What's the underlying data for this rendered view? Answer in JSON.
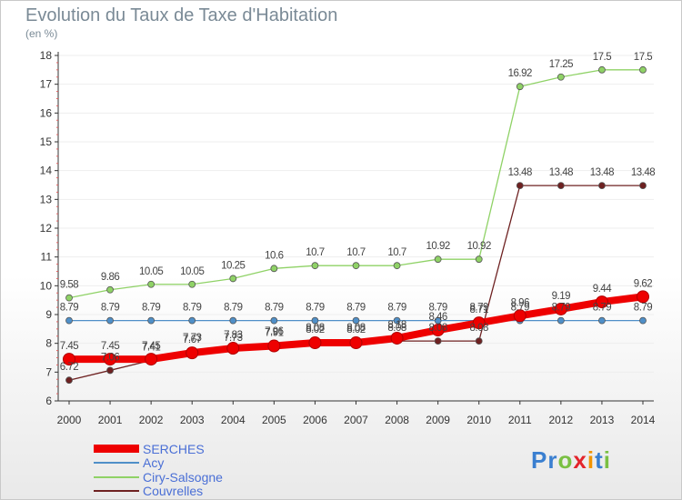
{
  "title": "Evolution du Taux de Taxe d'Habitation",
  "unit_label": "(en %)",
  "brand": {
    "letters": [
      {
        "ch": "P",
        "color": "#3a7fd0"
      },
      {
        "ch": "r",
        "color": "#3a7fd0"
      },
      {
        "ch": "o",
        "color": "#7ac043"
      },
      {
        "ch": "x",
        "color": "#e3242b"
      },
      {
        "ch": "i",
        "color": "#f29400"
      },
      {
        "ch": "t",
        "color": "#3a7fd0"
      },
      {
        "ch": "i",
        "color": "#7ac043"
      }
    ]
  },
  "chart_data": {
    "type": "line",
    "title": "Evolution du Taux de Taxe d'Habitation",
    "ylabel": "(en %)",
    "xlabel": "",
    "x": [
      "2000",
      "2001",
      "2002",
      "2003",
      "2004",
      "2005",
      "2006",
      "2007",
      "2008",
      "2009",
      "2010",
      "2011",
      "2012",
      "2013",
      "2014"
    ],
    "ylim": [
      6,
      18
    ],
    "yticks": [
      "6",
      "7",
      "8",
      "9",
      "10",
      "11",
      "12",
      "13",
      "14",
      "15",
      "16",
      "17",
      "18"
    ],
    "legend_position": "bottom-left",
    "series": [
      {
        "name": "SERCHES",
        "color": "#ee0000",
        "emphasis": true,
        "values": [
          7.45,
          7.45,
          7.45,
          7.67,
          7.83,
          7.91,
          8.02,
          8.02,
          8.18,
          8.46,
          8.71,
          8.96,
          9.19,
          9.44,
          9.62
        ],
        "labels": [
          "7.45",
          "7.45",
          "7.45",
          "7.67",
          "7.83",
          "7.91",
          "8.02",
          "8.02",
          "8.18",
          "8.46",
          "8.71",
          "8.96",
          "9.19",
          "9.44",
          "9.62"
        ]
      },
      {
        "name": "Acy",
        "color": "#4f8fc8",
        "values": [
          8.79,
          8.79,
          8.79,
          8.79,
          8.79,
          8.79,
          8.79,
          8.79,
          8.79,
          8.79,
          8.79,
          8.79,
          8.79,
          8.79,
          8.79
        ],
        "labels": [
          "8.79",
          "8.79",
          "8.79",
          "8.79",
          "8.79",
          "8.79",
          "8.79",
          "8.79",
          "8.79",
          "8.79",
          "8.79",
          "8.79",
          "8.79",
          "8.79",
          "8.79"
        ]
      },
      {
        "name": "Ciry-Salsogne",
        "color": "#8fd266",
        "values": [
          9.58,
          9.86,
          10.05,
          10.05,
          10.25,
          10.6,
          10.7,
          10.7,
          10.7,
          10.92,
          10.92,
          16.92,
          17.25,
          17.5,
          17.5
        ],
        "labels": [
          "9.58",
          "9.86",
          "10.05",
          "10.05",
          "10.25",
          "10.6",
          "10.7",
          "10.7",
          "10.7",
          "10.92",
          "10.92",
          "16.92",
          "17.25",
          "17.5",
          "17.5"
        ]
      },
      {
        "name": "Couvrelles",
        "color": "#6e2121",
        "values": [
          6.72,
          7.06,
          7.41,
          7.73,
          7.73,
          7.96,
          8.08,
          8.08,
          8.08,
          8.08,
          8.08,
          13.48,
          13.48,
          13.48,
          13.48
        ],
        "labels": [
          "6.72",
          "7.06",
          "7.41",
          "7.73",
          "7.73",
          "7.96",
          "8.08",
          "8.08",
          "8.08",
          "8.08",
          "8.08",
          "13.48",
          "13.48",
          "13.48",
          "13.48"
        ]
      }
    ]
  }
}
